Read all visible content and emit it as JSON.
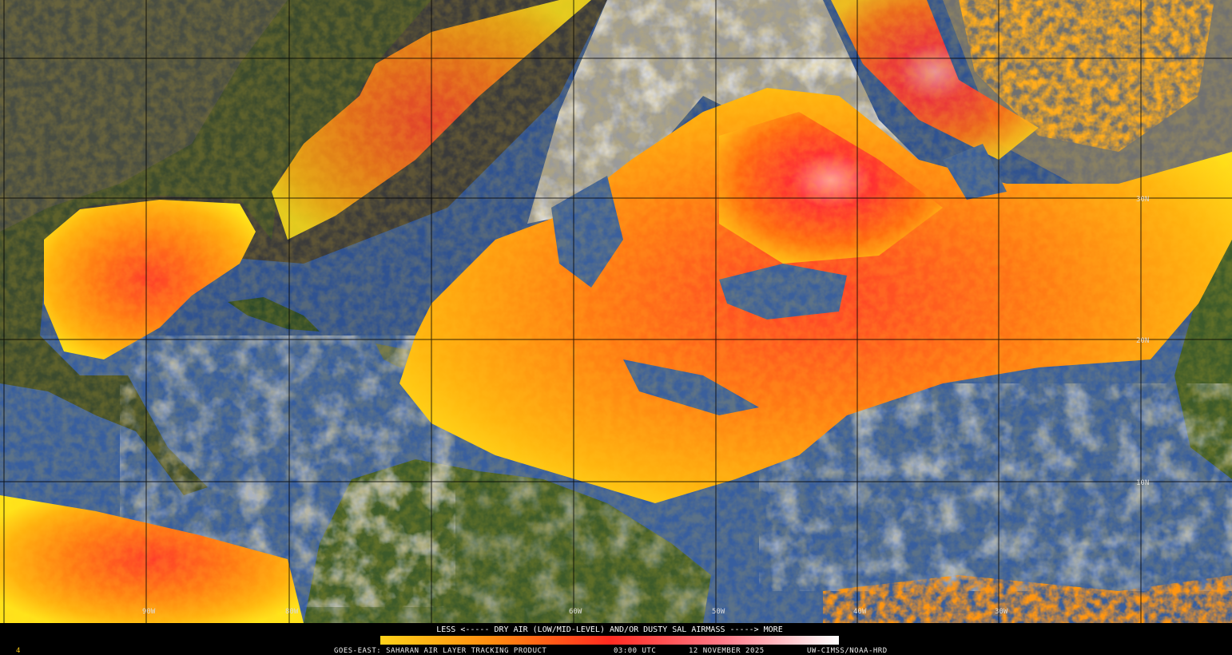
{
  "map": {
    "lat_labels": [
      "30N",
      "20N",
      "10N"
    ],
    "lon_labels": [
      "90W",
      "80W",
      "60W",
      "50W",
      "40W",
      "30W"
    ],
    "legend": {
      "caption": "LESS <----- DRY AIR (LOW/MID-LEVEL) AND/OR DUSTY SAL AIRMASS -----> MORE"
    },
    "footer": {
      "product": "GOES-EAST: SAHARAN AIR LAYER TRACKING PRODUCT",
      "time": "03:00 UTC",
      "date": "12 NOVEMBER 2025",
      "source": "UW-CIMSS/NOAA-HRD"
    },
    "frame": "4"
  }
}
